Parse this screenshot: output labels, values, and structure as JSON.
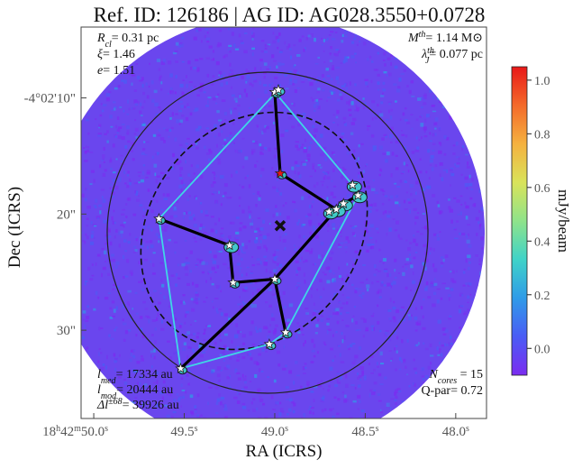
{
  "chart_data": {
    "type": "heatmap",
    "title": "Ref. ID: 126186 | AG ID: AG028.3550+0.0728",
    "xlabel": "RA (ICRS)",
    "ylabel": "Dec (ICRS)",
    "x_ticks": [
      {
        "value": 50.0,
        "h": "18",
        "hs": "h",
        "m": "42",
        "ms": "m",
        "s": "50.0",
        "ss": "s"
      },
      {
        "value": 49.5,
        "s": "49.5",
        "ss": "s"
      },
      {
        "value": 49.0,
        "s": "49.0",
        "ss": "s"
      },
      {
        "value": 48.5,
        "s": "48.5",
        "ss": "s"
      },
      {
        "value": 48.0,
        "s": "48.0",
        "ss": "s"
      }
    ],
    "y_ticks": [
      {
        "value": 10,
        "label": "-4°02'10\""
      },
      {
        "value": 20,
        "label": "20\""
      },
      {
        "value": 30,
        "label": "30\""
      }
    ],
    "x_range": [
      50.07,
      47.83
    ],
    "y_range": [
      37.6,
      3.9
    ],
    "colorbar": {
      "label": "mJy/beam",
      "range": [
        -0.1,
        1.05
      ],
      "ticks": [
        {
          "value": 0.0,
          "label": "0.0"
        },
        {
          "value": 0.2,
          "label": "0.2"
        },
        {
          "value": 0.4,
          "label": "0.4"
        },
        {
          "value": 0.6,
          "label": "0.6"
        },
        {
          "value": 0.8,
          "label": "0.8"
        },
        {
          "value": 1.0,
          "label": "1.0"
        }
      ],
      "colormap": [
        "#7b2cf0",
        "#4a5cf5",
        "#2f9be8",
        "#3fd3c8",
        "#8fe38a",
        "#d9e35a",
        "#f5b13f",
        "#f46a2a",
        "#e81818"
      ]
    },
    "map_background": "#6a46ee",
    "cores": [
      {
        "ra": 49.0,
        "dec": 9.5
      },
      {
        "ra": 48.98,
        "dec": 9.3
      },
      {
        "ra": 48.97,
        "dec": 16.5
      },
      {
        "ra": 48.57,
        "dec": 17.5
      },
      {
        "ra": 48.54,
        "dec": 18.4
      },
      {
        "ra": 48.62,
        "dec": 19.1
      },
      {
        "ra": 48.66,
        "dec": 19.6
      },
      {
        "ra": 48.7,
        "dec": 19.8
      },
      {
        "ra": 49.64,
        "dec": 20.4
      },
      {
        "ra": 49.25,
        "dec": 22.7
      },
      {
        "ra": 49.23,
        "dec": 25.9
      },
      {
        "ra": 49.0,
        "dec": 25.6
      },
      {
        "ra": 48.94,
        "dec": 30.2
      },
      {
        "ra": 49.03,
        "dec": 31.2
      },
      {
        "ra": 49.52,
        "dec": 33.3
      }
    ],
    "mst_edges": [
      [
        0,
        2
      ],
      [
        2,
        6
      ],
      [
        6,
        5
      ],
      [
        5,
        4
      ],
      [
        6,
        11
      ],
      [
        11,
        12
      ],
      [
        11,
        10
      ],
      [
        10,
        9
      ],
      [
        9,
        8
      ],
      [
        11,
        14
      ]
    ],
    "hull_vertices": [
      1,
      0,
      3,
      4,
      12,
      13,
      14,
      8
    ],
    "center": {
      "ra": 48.97,
      "dec": 21.0
    },
    "annotations_left": [
      {
        "sym": "R",
        "sub": "cl",
        "sup": "",
        "val": "= 0.31 pc"
      },
      {
        "sym": "ξ",
        "sub": "",
        "sup": "",
        "val": "= 1.46"
      },
      {
        "sym": "e",
        "sub": "",
        "sup": "",
        "val": "= 1.51"
      }
    ],
    "annotations_right": [
      {
        "sym": "M",
        "sub": "",
        "sup": "th",
        "val": "= 1.14 M⊙"
      },
      {
        "sym": "λ",
        "sub": "J",
        "sup": "th",
        "val": "= 0.077 pc"
      }
    ],
    "annotations_bottom_left": [
      {
        "sym": "l",
        "sub": "med",
        "sup": "",
        "val": "= 17334 au"
      },
      {
        "sym": "l",
        "sub": "mod",
        "sup": "",
        "val": "= 20444 au"
      },
      {
        "sym": "Δl",
        "sub": "",
        "sup": "±68",
        "val": "= 39926 au"
      }
    ],
    "annotations_bottom_right": [
      {
        "sym": "N",
        "sub": "cores",
        "sup": "",
        "val": " = 15"
      },
      {
        "sym": "Q-par",
        "sub": "",
        "sup": "",
        "val": "= 0.72"
      }
    ]
  }
}
